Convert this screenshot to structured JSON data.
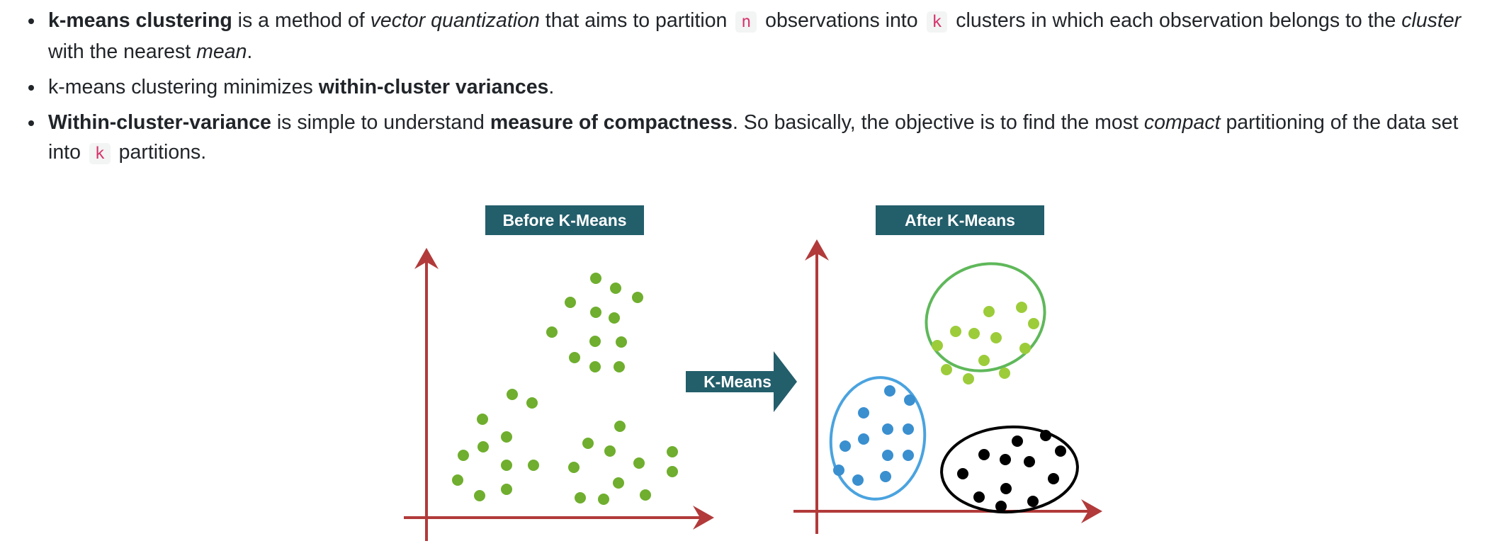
{
  "bullets": [
    {
      "p1": "k-means clustering",
      "p2": " is a method of ",
      "p3": "vector quantization",
      "p4": " that aims to partition ",
      "p5": "n",
      "p6": " observations into ",
      "p7": "k",
      "p8": " clusters in which each observation belongs to the ",
      "p9": "cluster",
      "p10": " with the nearest ",
      "p11": "mean",
      "p12": "."
    },
    {
      "p1": "k-means clustering minimizes ",
      "p2": "within-cluster variances",
      "p3": "."
    },
    {
      "p1": "Within-cluster-variance",
      "p2": " is simple to understand ",
      "p3": "measure of compactness",
      "p4": ". So basically, the objective is to find the most ",
      "p5": "compact",
      "p6": " partitioning of the data set into ",
      "p7": "k",
      "p8": " partitions."
    }
  ],
  "figure": {
    "before_label": "Before K-Means",
    "after_label": "After K-Means",
    "arrow_label": "K-Means",
    "colors": {
      "axis": "#b23a3a",
      "label_bg": "#235e6b",
      "label_text": "#ffffff",
      "before_points": "#6fae2e",
      "cluster_green": "#9ccc3a",
      "cluster_green_ring": "#5fb85a",
      "cluster_blue": "#3a8fcf",
      "cluster_blue_ring": "#4aa3df",
      "cluster_black": "#000000"
    }
  }
}
